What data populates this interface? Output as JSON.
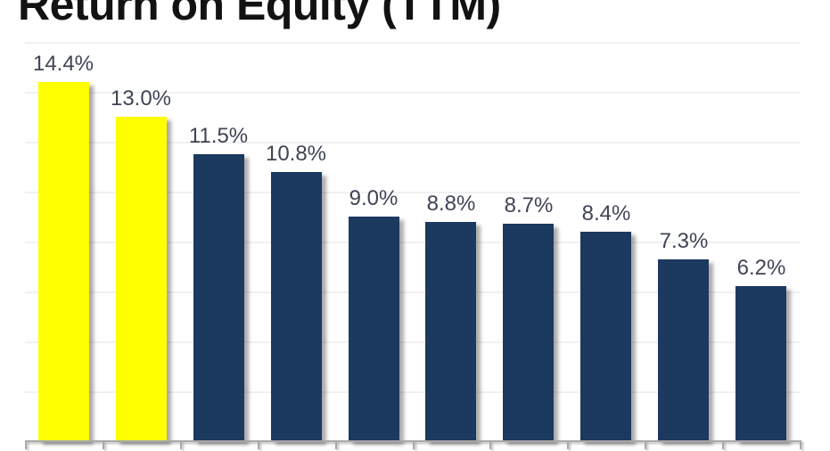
{
  "title": "Return on Equity (TTM)",
  "style": {
    "background": "#FFFFFF",
    "title_color": "#121212",
    "label_color": "#3F4456",
    "gridline_color": "#F1F1F1",
    "axis_color": "#A8A8A8",
    "highlight_bar_color": "#FFFF00",
    "default_bar_color": "#1C3960"
  },
  "chart_data": {
    "type": "bar",
    "title": "Return on Equity (TTM)",
    "values": [
      14.4,
      13.0,
      11.5,
      10.8,
      9.0,
      8.8,
      8.7,
      8.4,
      7.3,
      6.2
    ],
    "data_labels": [
      "14.4%",
      "13.0%",
      "11.5%",
      "10.8%",
      "9.0%",
      "8.8%",
      "8.7%",
      "8.4%",
      "7.3%",
      "6.2%"
    ],
    "bar_colors": [
      "#FFFF00",
      "#FFFF00",
      "#1C3960",
      "#1C3960",
      "#1C3960",
      "#1C3960",
      "#1C3960",
      "#1C3960",
      "#1C3960",
      "#1C3960"
    ],
    "xlabel": "",
    "ylabel": "",
    "ylim": [
      0,
      16
    ],
    "gridline_step": 2,
    "grid": true,
    "legend": "none",
    "x_tick_labels_visible": false
  }
}
